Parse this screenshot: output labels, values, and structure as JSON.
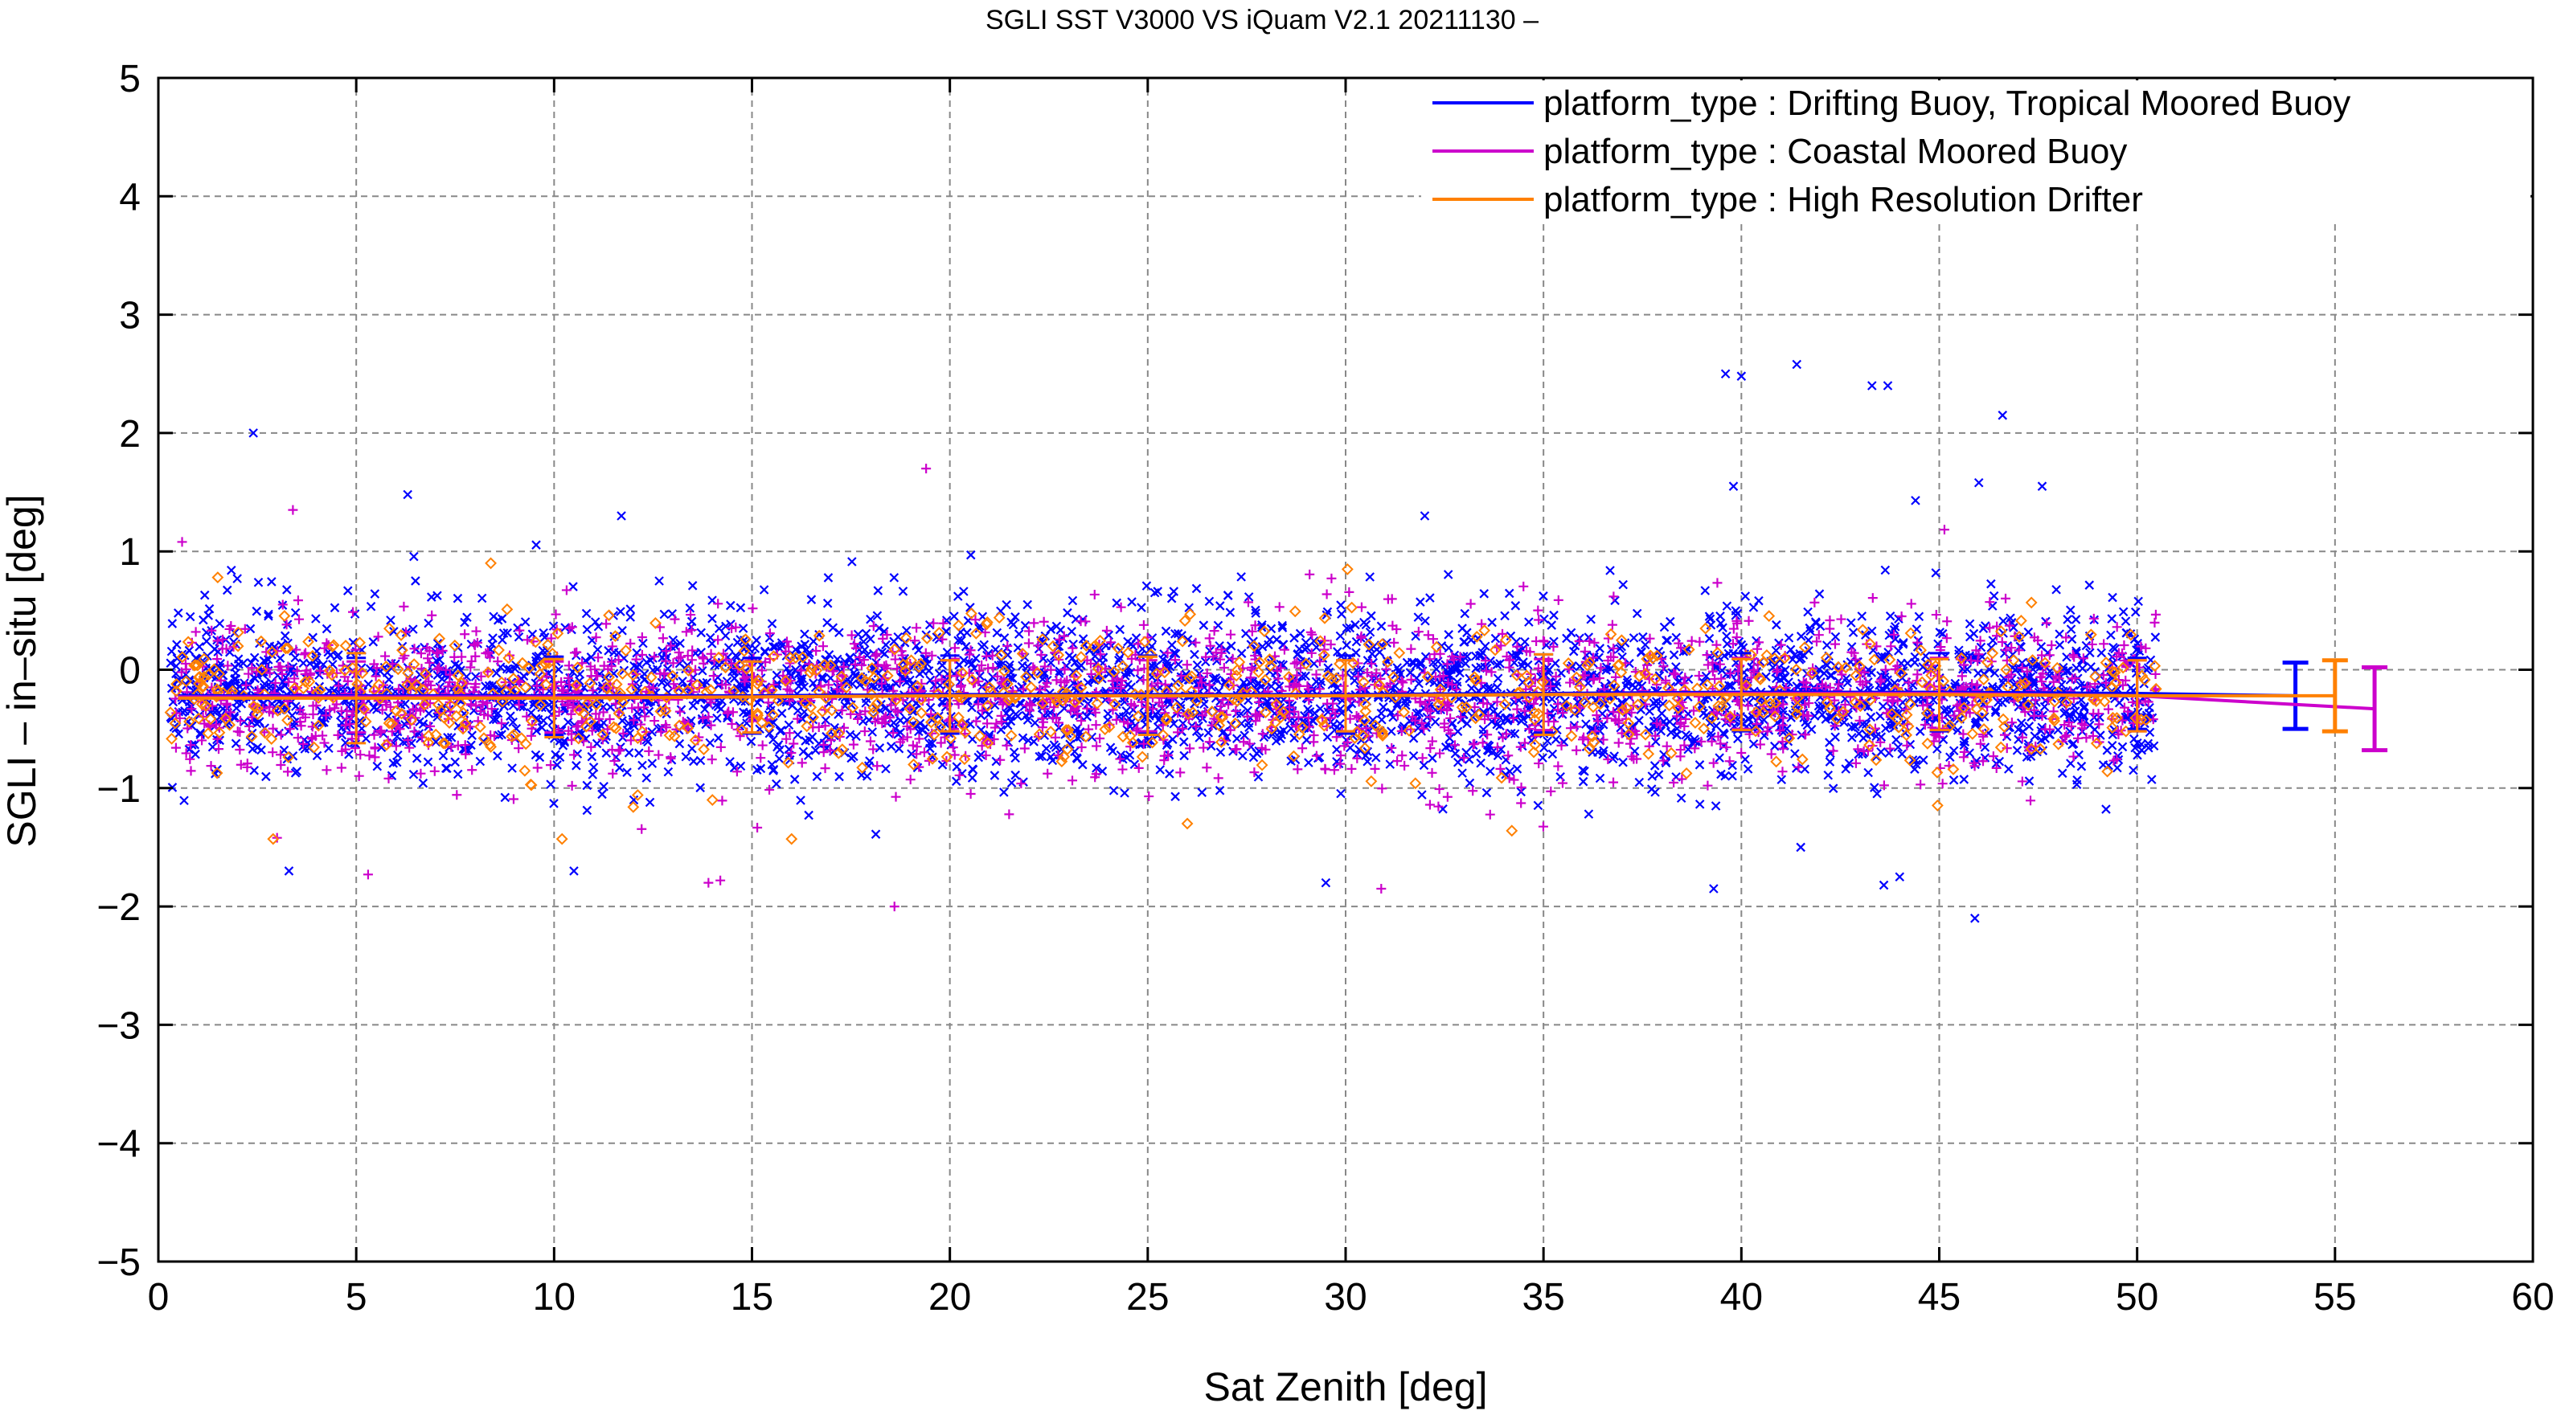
{
  "chart_data": {
    "type": "scatter",
    "title": "SGLI SST V3000 VS iQuam V2.1 20211130 –",
    "xlabel": "Sat Zenith [deg]",
    "ylabel": "SGLI – in–situ [deg]",
    "xlim": [
      0,
      60
    ],
    "ylim": [
      -5,
      5
    ],
    "x_ticks": [
      0,
      5,
      10,
      15,
      20,
      25,
      30,
      35,
      40,
      45,
      50,
      55,
      60
    ],
    "y_ticks": [
      5,
      4,
      3,
      2,
      1,
      0,
      -1,
      -2,
      -3,
      -4,
      -5
    ],
    "x_tick_labels": [
      "0",
      "5",
      "10",
      "15",
      "20",
      "25",
      "30",
      "35",
      "40",
      "45",
      "50",
      "55",
      "60"
    ],
    "y_tick_labels": [
      "5",
      "4",
      "3",
      "2",
      "1",
      "0",
      "−1",
      "−2",
      "−3",
      "−4",
      "−5"
    ],
    "grid": true,
    "legend_position": "top-right",
    "series": [
      {
        "name": "platform_type : Drifting Buoy, Tropical Moored Buoy",
        "color": "#0000ff",
        "marker": "x",
        "x_range": [
          0.3,
          50.5
        ],
        "scatter_center": -0.2,
        "scatter_spread": 0.35,
        "scatter_count": 3200,
        "outliers": [
          {
            "x": 2.4,
            "y": 2.0
          },
          {
            "x": 6.3,
            "y": 1.48
          },
          {
            "x": 11.7,
            "y": 1.3
          },
          {
            "x": 39.6,
            "y": 2.5
          },
          {
            "x": 40.0,
            "y": 2.48
          },
          {
            "x": 41.4,
            "y": 2.58
          },
          {
            "x": 43.3,
            "y": 2.4
          },
          {
            "x": 43.7,
            "y": 2.4
          },
          {
            "x": 46.6,
            "y": 2.15
          },
          {
            "x": 39.8,
            "y": 1.55
          },
          {
            "x": 46.0,
            "y": 1.58
          },
          {
            "x": 47.6,
            "y": 1.55
          },
          {
            "x": 44.4,
            "y": 1.43
          },
          {
            "x": 3.3,
            "y": -1.7
          },
          {
            "x": 10.5,
            "y": -1.7
          },
          {
            "x": 29.5,
            "y": -1.8
          },
          {
            "x": 39.3,
            "y": -1.85
          },
          {
            "x": 43.6,
            "y": -1.82
          },
          {
            "x": 45.9,
            "y": -2.1
          },
          {
            "x": 44.0,
            "y": -1.75
          },
          {
            "x": 41.5,
            "y": -1.5
          },
          {
            "x": 32.0,
            "y": 1.3
          }
        ],
        "binned_x": [
          5,
          10,
          15,
          20,
          25,
          30,
          35,
          40,
          45,
          50
        ],
        "binned_mean": [
          -0.22,
          -0.22,
          -0.22,
          -0.21,
          -0.21,
          -0.21,
          -0.2,
          -0.19,
          -0.19,
          -0.2
        ],
        "binned_std": [
          0.32,
          0.33,
          0.32,
          0.33,
          0.33,
          0.33,
          0.33,
          0.33,
          0.33,
          0.3
        ],
        "summary_x": 54,
        "summary_mean": -0.22,
        "summary_std": 0.28
      },
      {
        "name": "platform_type : Coastal Moored Buoy",
        "color": "#cc00cc",
        "marker": "+",
        "x_range": [
          0.3,
          50.5
        ],
        "scatter_center": -0.23,
        "scatter_spread": 0.33,
        "scatter_count": 1800,
        "outliers": [
          {
            "x": 19.4,
            "y": 1.7
          },
          {
            "x": 3.4,
            "y": 1.35
          },
          {
            "x": 0.6,
            "y": 1.08
          },
          {
            "x": 18.6,
            "y": -2.0
          },
          {
            "x": 30.9,
            "y": -1.85
          },
          {
            "x": 13.9,
            "y": -1.8
          },
          {
            "x": 14.2,
            "y": -1.78
          },
          {
            "x": 5.3,
            "y": -1.73
          },
          {
            "x": 3.0,
            "y": -1.42
          }
        ],
        "binned_x": [
          5,
          10,
          15,
          20,
          25,
          30,
          35,
          40,
          45,
          50
        ],
        "binned_mean": [
          -0.23,
          -0.23,
          -0.23,
          -0.22,
          -0.22,
          -0.22,
          -0.21,
          -0.2,
          -0.2,
          -0.22
        ],
        "binned_std": [
          0.3,
          0.3,
          0.3,
          0.3,
          0.3,
          0.3,
          0.3,
          0.3,
          0.3,
          0.3
        ],
        "summary_x": 56,
        "summary_mean": -0.33,
        "summary_std": 0.35
      },
      {
        "name": "platform_type : High Resolution Drifter",
        "color": "#ff8000",
        "marker": "diamond",
        "x_range": [
          0.3,
          50.5
        ],
        "scatter_center": -0.22,
        "scatter_spread": 0.3,
        "scatter_count": 700,
        "outliers": [
          {
            "x": 1.5,
            "y": 0.78
          },
          {
            "x": 8.4,
            "y": 0.9
          },
          {
            "x": 2.9,
            "y": -1.43
          },
          {
            "x": 10.2,
            "y": -1.43
          },
          {
            "x": 14.0,
            "y": -1.1
          },
          {
            "x": 16.0,
            "y": -1.43
          },
          {
            "x": 26.0,
            "y": -1.3
          },
          {
            "x": 34.2,
            "y": -1.36
          },
          {
            "x": 12.0,
            "y": -1.16
          }
        ],
        "binned_x": [
          5,
          10,
          15,
          20,
          25,
          30,
          35,
          40,
          45,
          50
        ],
        "binned_mean": [
          -0.24,
          -0.24,
          -0.23,
          -0.22,
          -0.22,
          -0.22,
          -0.21,
          -0.21,
          -0.21,
          -0.22
        ],
        "binned_std": [
          0.38,
          0.33,
          0.3,
          0.3,
          0.33,
          0.3,
          0.34,
          0.3,
          0.3,
          0.3
        ],
        "summary_x": 55,
        "summary_mean": -0.22,
        "summary_std": 0.3
      }
    ]
  }
}
